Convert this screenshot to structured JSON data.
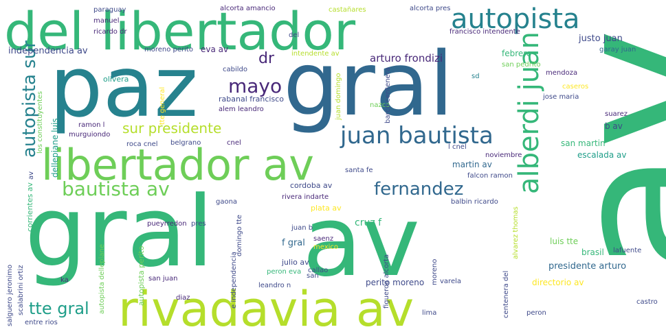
{
  "palette": {
    "dark_purple": "#482878",
    "blue_purple": "#3e4989",
    "slate_blue": "#31688e",
    "teal": "#26828e",
    "green_teal": "#1f9e89",
    "green": "#35b779",
    "light_green": "#6ece58",
    "lime": "#b5de2b",
    "yellow": "#fde725"
  },
  "words": [
    {
      "text": "av",
      "color": "#35b779",
      "orientation": "vertical"
    },
    {
      "text": "paz",
      "color": "#26828e",
      "orientation": "horizontal"
    },
    {
      "text": "gral",
      "color": "#31688e",
      "orientation": "horizontal"
    },
    {
      "text": "gral",
      "color": "#35b779",
      "orientation": "horizontal"
    },
    {
      "text": "av",
      "color": "#35b779",
      "orientation": "horizontal"
    },
    {
      "text": "del libertador",
      "color": "#35b779",
      "orientation": "horizontal"
    },
    {
      "text": "libertador av",
      "color": "#6ece58",
      "orientation": "horizontal"
    },
    {
      "text": "rivadavia av",
      "color": "#b5de2b",
      "orientation": "horizontal"
    },
    {
      "text": "autopista",
      "color": "#26828e",
      "orientation": "horizontal"
    },
    {
      "text": "juan bautista",
      "color": "#31688e",
      "orientation": "horizontal"
    },
    {
      "text": "alberdi juan",
      "color": "#35b779",
      "orientation": "vertical"
    },
    {
      "text": "autopista sur",
      "color": "#26828e",
      "orientation": "vertical"
    },
    {
      "text": "bautista av",
      "color": "#6ece58",
      "orientation": "horizontal"
    },
    {
      "text": "fernandez",
      "color": "#31688e",
      "orientation": "horizontal"
    },
    {
      "text": "tte gral",
      "color": "#1f9e89",
      "orientation": "horizontal"
    },
    {
      "text": "mayo",
      "color": "#482878",
      "orientation": "horizontal"
    },
    {
      "text": "dr",
      "color": "#482878",
      "orientation": "horizontal"
    },
    {
      "text": "sur presidente",
      "color": "#b5de2b",
      "orientation": "horizontal"
    },
    {
      "text": "arturo frondizi",
      "color": "#482878",
      "orientation": "horizontal"
    },
    {
      "text": "independencia av",
      "color": "#3e4989",
      "orientation": "horizontal"
    },
    {
      "text": "paraguay",
      "color": "#3e4989",
      "orientation": "horizontal"
    },
    {
      "text": "alcorta amancio",
      "color": "#482878",
      "orientation": "horizontal"
    },
    {
      "text": "castañares",
      "color": "#b5de2b",
      "orientation": "horizontal"
    },
    {
      "text": "alcorta pres",
      "color": "#3e4989",
      "orientation": "horizontal"
    },
    {
      "text": "manuel",
      "color": "#482878",
      "orientation": "horizontal"
    },
    {
      "text": "ricardo dr",
      "color": "#482878",
      "orientation": "horizontal"
    },
    {
      "text": "moreno perito",
      "color": "#3e4989",
      "orientation": "horizontal"
    },
    {
      "text": "eva av",
      "color": "#482878",
      "orientation": "horizontal"
    },
    {
      "text": "del",
      "color": "#3e4989",
      "orientation": "horizontal"
    },
    {
      "text": "francisco intendente",
      "color": "#482878",
      "orientation": "horizontal"
    },
    {
      "text": "justo juan",
      "color": "#3e4989",
      "orientation": "horizontal"
    },
    {
      "text": "garay juan",
      "color": "#31688e",
      "orientation": "horizontal"
    },
    {
      "text": "intendente av",
      "color": "#b5de2b",
      "orientation": "horizontal"
    },
    {
      "text": "febrero",
      "color": "#35b779",
      "orientation": "horizontal"
    },
    {
      "text": "san pedrito",
      "color": "#6ece58",
      "orientation": "horizontal"
    },
    {
      "text": "cabildo",
      "color": "#3e4989",
      "orientation": "horizontal"
    },
    {
      "text": "olivera",
      "color": "#1f9e89",
      "orientation": "horizontal"
    },
    {
      "text": "mendoza",
      "color": "#482878",
      "orientation": "horizontal"
    },
    {
      "text": "sd",
      "color": "#26828e",
      "orientation": "horizontal"
    },
    {
      "text": "caseros",
      "color": "#fde725",
      "orientation": "horizontal"
    },
    {
      "text": "rabanal francisco",
      "color": "#3e4989",
      "orientation": "horizontal"
    },
    {
      "text": "alem leandro",
      "color": "#482878",
      "orientation": "horizontal"
    },
    {
      "text": "nazca",
      "color": "#6ece58",
      "orientation": "horizontal"
    },
    {
      "text": "jose maria",
      "color": "#3e4989",
      "orientation": "horizontal"
    },
    {
      "text": "suarez",
      "color": "#482878",
      "orientation": "horizontal"
    },
    {
      "text": "ramon l",
      "color": "#482878",
      "orientation": "horizontal"
    },
    {
      "text": "murguiondo",
      "color": "#482878",
      "orientation": "horizontal"
    },
    {
      "text": "b av",
      "color": "#3e4989",
      "orientation": "horizontal"
    },
    {
      "text": "roca cnel",
      "color": "#3e4989",
      "orientation": "horizontal"
    },
    {
      "text": "belgrano",
      "color": "#3e4989",
      "orientation": "horizontal"
    },
    {
      "text": "cnel",
      "color": "#482878",
      "orientation": "horizontal"
    },
    {
      "text": "l cnel",
      "color": "#3e4989",
      "orientation": "horizontal"
    },
    {
      "text": "noviembre",
      "color": "#482878",
      "orientation": "horizontal"
    },
    {
      "text": "san martin",
      "color": "#35b779",
      "orientation": "horizontal"
    },
    {
      "text": "escalada av",
      "color": "#1f9e89",
      "orientation": "horizontal"
    },
    {
      "text": "martin av",
      "color": "#31688e",
      "orientation": "horizontal"
    },
    {
      "text": "santa fe",
      "color": "#3e4989",
      "orientation": "horizontal"
    },
    {
      "text": "falcon ramon",
      "color": "#3e4989",
      "orientation": "horizontal"
    },
    {
      "text": "cordoba av",
      "color": "#3e4989",
      "orientation": "horizontal"
    },
    {
      "text": "rivera indarte",
      "color": "#482878",
      "orientation": "horizontal"
    },
    {
      "text": "gaona",
      "color": "#3e4989",
      "orientation": "horizontal"
    },
    {
      "text": "plata av",
      "color": "#fde725",
      "orientation": "horizontal"
    },
    {
      "text": "balbin ricardo",
      "color": "#3e4989",
      "orientation": "horizontal"
    },
    {
      "text": "cruz f",
      "color": "#35b779",
      "orientation": "horizontal"
    },
    {
      "text": "pueyrredon",
      "color": "#482878",
      "orientation": "horizontal"
    },
    {
      "text": "pres",
      "color": "#3e4989",
      "orientation": "horizontal"
    },
    {
      "text": "juan b",
      "color": "#3e4989",
      "orientation": "horizontal"
    },
    {
      "text": "saenz",
      "color": "#482878",
      "orientation": "horizontal"
    },
    {
      "text": "mexico",
      "color": "#fde725",
      "orientation": "horizontal"
    },
    {
      "text": "f gral",
      "color": "#31688e",
      "orientation": "horizontal"
    },
    {
      "text": "luis tte",
      "color": "#6ece58",
      "orientation": "horizontal"
    },
    {
      "text": "brasil",
      "color": "#35b779",
      "orientation": "horizontal"
    },
    {
      "text": "lafuente",
      "color": "#3e4989",
      "orientation": "horizontal"
    },
    {
      "text": "presidente arturo",
      "color": "#31688e",
      "orientation": "horizontal"
    },
    {
      "text": "julio av",
      "color": "#3e4989",
      "orientation": "horizontal"
    },
    {
      "text": "peron eva",
      "color": "#35b779",
      "orientation": "horizontal"
    },
    {
      "text": "callao",
      "color": "#3e4989",
      "orientation": "horizontal"
    },
    {
      "text": "san",
      "color": "#3e4989",
      "orientation": "horizontal"
    },
    {
      "text": "san juan",
      "color": "#482878",
      "orientation": "horizontal"
    },
    {
      "text": "leandro n",
      "color": "#3e4989",
      "orientation": "horizontal"
    },
    {
      "text": "perito moreno",
      "color": "#3e4989",
      "orientation": "horizontal"
    },
    {
      "text": "varela",
      "color": "#3e4989",
      "orientation": "horizontal"
    },
    {
      "text": "directorio av",
      "color": "#fde725",
      "orientation": "horizontal"
    },
    {
      "text": "ka",
      "color": "#482878",
      "orientation": "horizontal"
    },
    {
      "text": "diaz",
      "color": "#482878",
      "orientation": "horizontal"
    },
    {
      "text": "entre rios",
      "color": "#3e4989",
      "orientation": "horizontal"
    },
    {
      "text": "lima",
      "color": "#3e4989",
      "orientation": "horizontal"
    },
    {
      "text": "peron",
      "color": "#3e4989",
      "orientation": "horizontal"
    },
    {
      "text": "castro",
      "color": "#3e4989",
      "orientation": "horizontal"
    },
    {
      "text": "tte general",
      "color": "#fde725",
      "orientation": "vertical"
    },
    {
      "text": "juan domingo",
      "color": "#b5de2b",
      "orientation": "vertical"
    },
    {
      "text": "barco centenera",
      "color": "#3e4989",
      "orientation": "vertical"
    },
    {
      "text": "los constituyentes",
      "color": "#6ece58",
      "orientation": "vertical"
    },
    {
      "text": "dellepiane luis",
      "color": "#1f9e89",
      "orientation": "vertical"
    },
    {
      "text": "av",
      "color": "#3e4989",
      "orientation": "vertical"
    },
    {
      "text": "corrientes av",
      "color": "#35b779",
      "orientation": "vertical"
    },
    {
      "text": "autopista dellepiane",
      "color": "#6ece58",
      "orientation": "vertical"
    },
    {
      "text": "autopista perito",
      "color": "#6ece58",
      "orientation": "vertical"
    },
    {
      "text": "domingo tte",
      "color": "#3e4989",
      "orientation": "vertical"
    },
    {
      "text": "e independencia",
      "color": "#3e4989",
      "orientation": "vertical"
    },
    {
      "text": "figueroa alcorta",
      "color": "#3e4989",
      "orientation": "vertical"
    },
    {
      "text": "alvarez thomas",
      "color": "#b5de2b",
      "orientation": "vertical"
    },
    {
      "text": "moreno",
      "color": "#3e4989",
      "orientation": "vertical"
    },
    {
      "text": "centenera del",
      "color": "#3e4989",
      "orientation": "vertical"
    },
    {
      "text": "salguero jeronimo",
      "color": "#3e4989",
      "orientation": "vertical"
    },
    {
      "text": "scalabrini ortiz",
      "color": "#3e4989",
      "orientation": "vertical"
    }
  ]
}
